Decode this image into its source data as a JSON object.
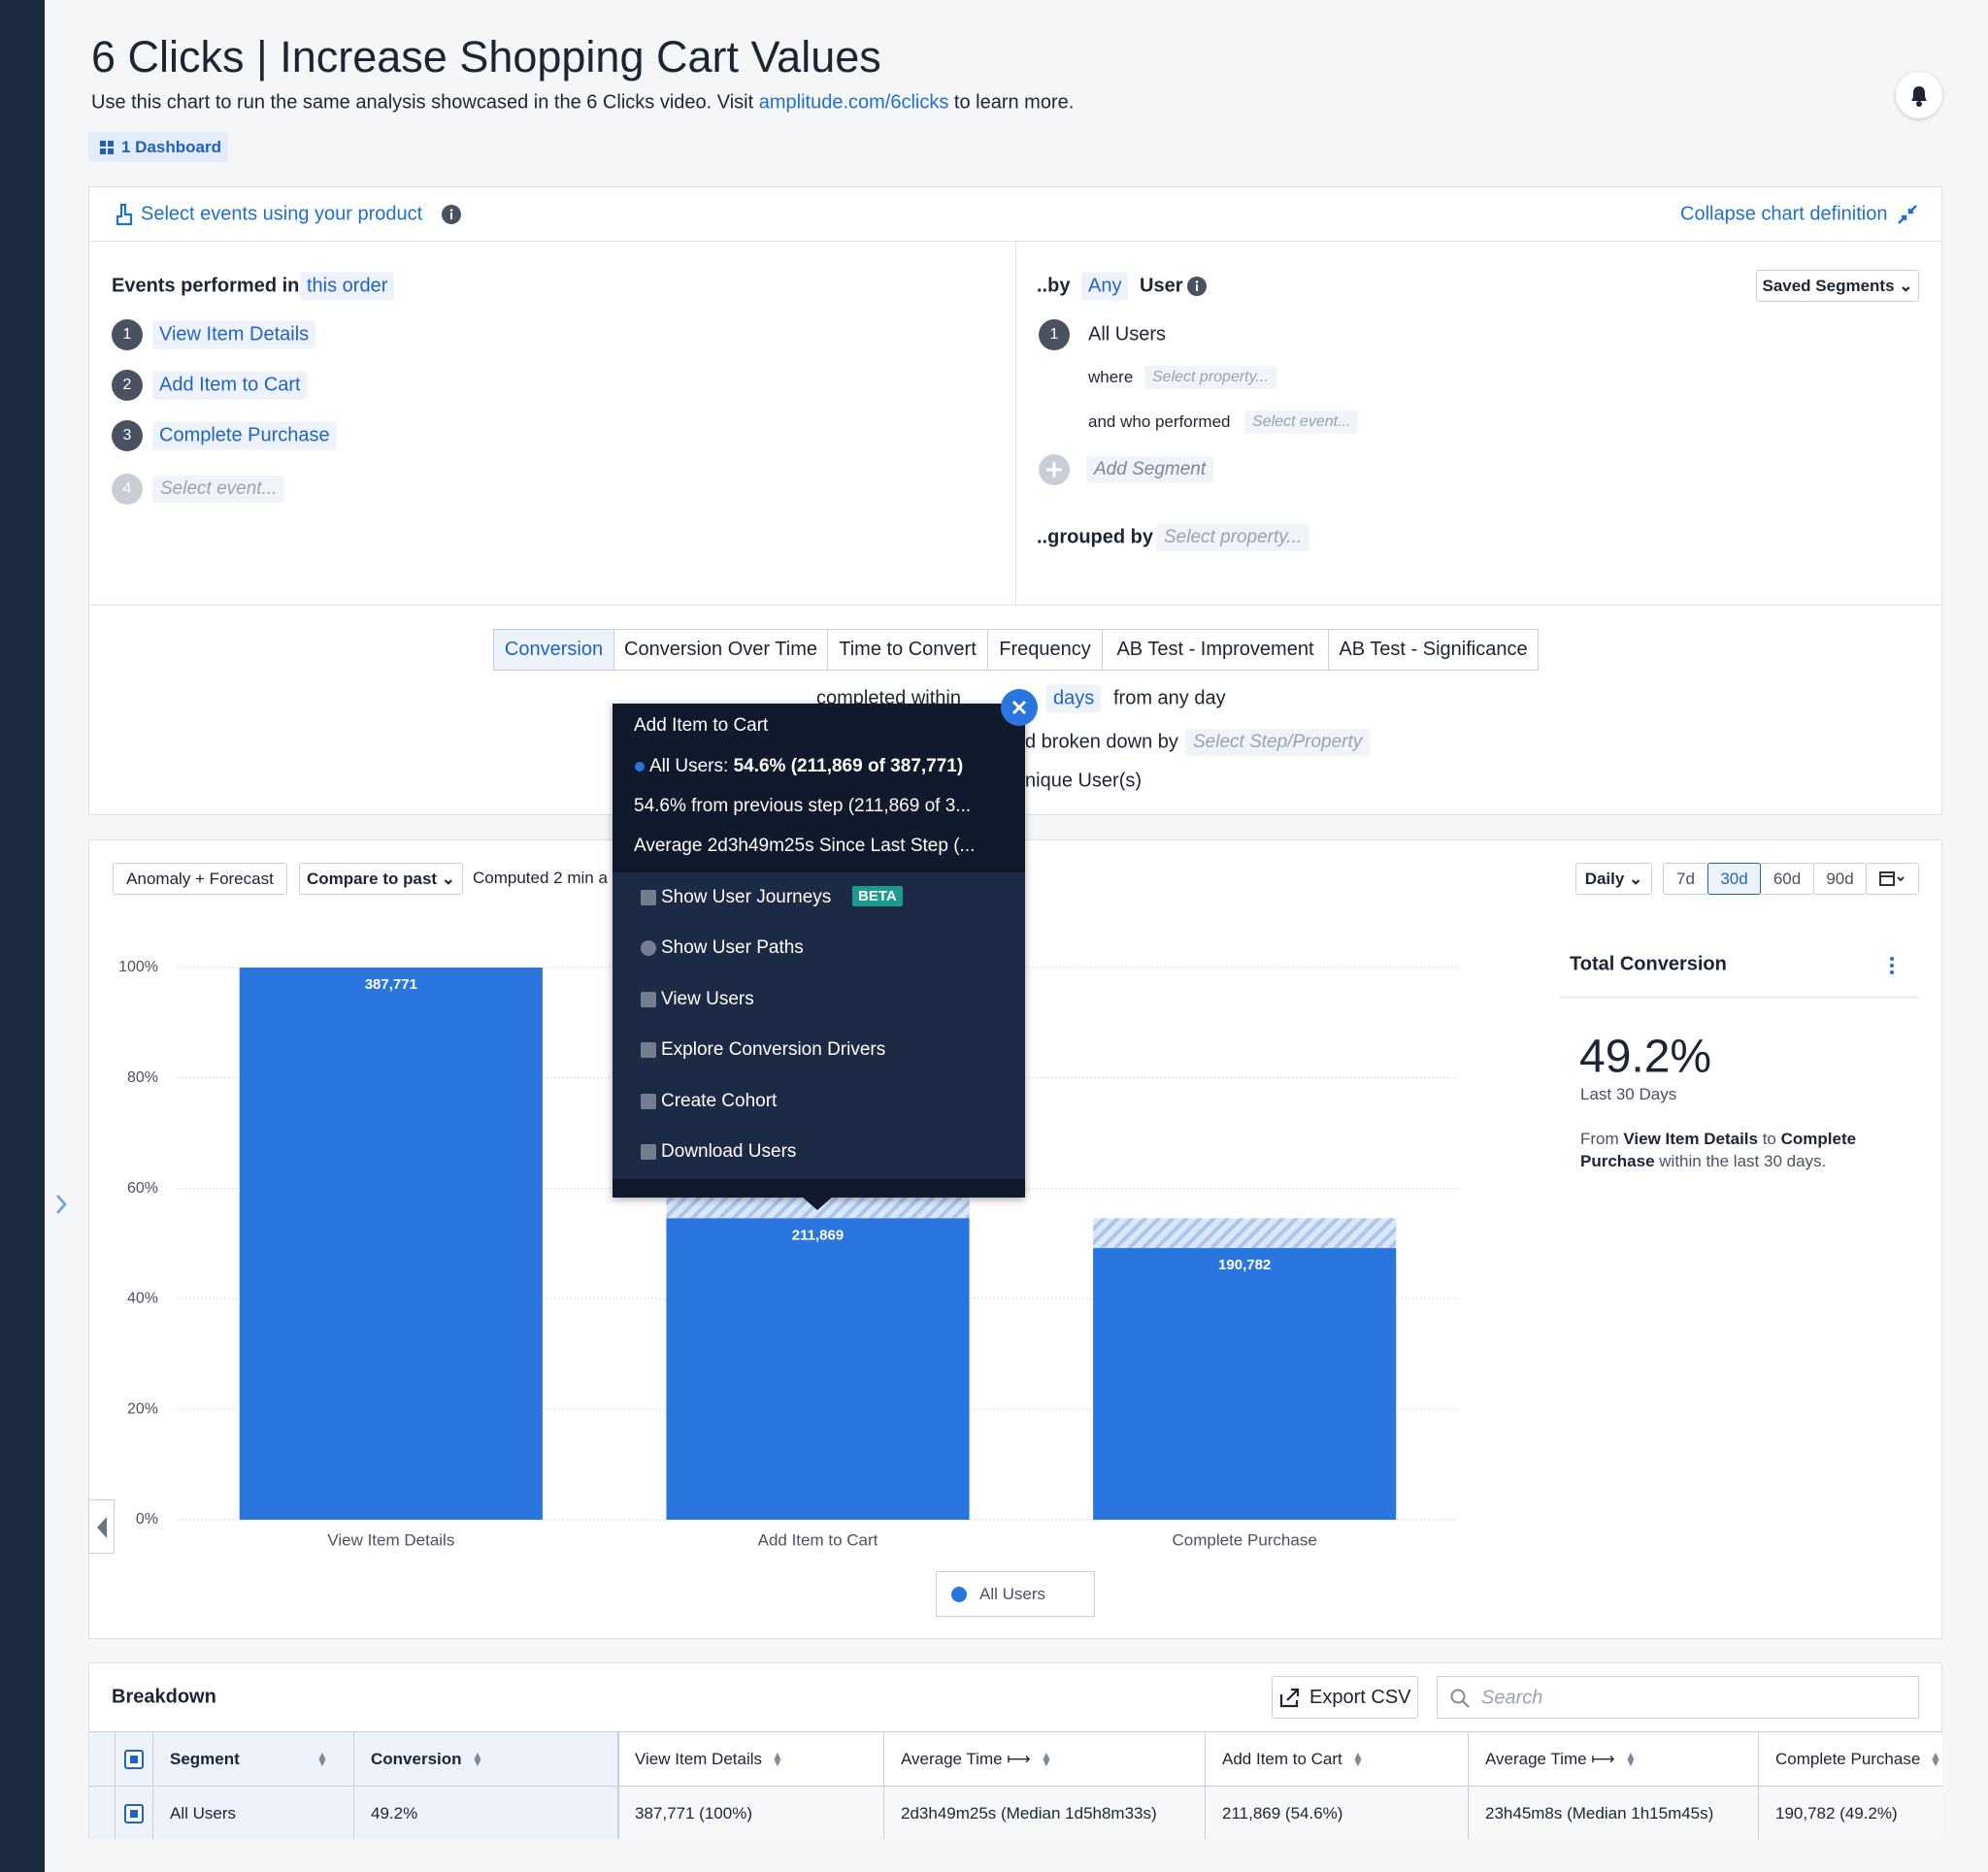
{
  "header": {
    "title": "6 Clicks | Increase Shopping Cart Values",
    "subtitle_before": "Use this chart to run the same analysis showcased in the 6 Clicks video. Visit ",
    "link": "amplitude.com/6clicks",
    "subtitle_after": " to learn more.",
    "dashboard": "1 Dashboard"
  },
  "definition": {
    "select_events": "Select events using your product",
    "collapse": "Collapse chart definition",
    "events_label": "Events performed in",
    "order": "this order",
    "steps": [
      {
        "number": "1",
        "label": "View Item Details"
      },
      {
        "number": "2",
        "label": "Add Item to Cart"
      },
      {
        "number": "3",
        "label": "Complete Purchase"
      },
      {
        "number": "4",
        "label": "Select event..."
      }
    ],
    "by": "..by",
    "any": "Any",
    "user": "User",
    "saved_segments": "Saved Segments",
    "segment_number": "1",
    "segment": "All Users",
    "where": "where",
    "where_property": "Select property...",
    "who_performed": "and who performed",
    "who_event": "Select event...",
    "add_segment": "Add Segment",
    "grouped_by": "..grouped by",
    "grouped_property": "Select property..."
  },
  "tabs": [
    "Conversion",
    "Conversion Over Time",
    "Time to Convert",
    "Frequency",
    "AB Test - Improvement",
    "AB Test - Significance"
  ],
  "settings": {
    "completed_within": "completed within",
    "days": "days",
    "from_any_day": "from any day",
    "broken_down_by": "d broken down by",
    "select_step": "Select Step/Property",
    "unique": "nique User(s)"
  },
  "toolbar": {
    "anomaly": "Anomaly + Forecast",
    "compare": "Compare to past",
    "computed": "Computed 2 min a",
    "interval": "Daily",
    "ranges": [
      "7d",
      "30d",
      "60d",
      "90d"
    ]
  },
  "chart_data": {
    "type": "bar",
    "categories": [
      "View Item Details",
      "Add Item to Cart",
      "Complete Purchase"
    ],
    "series": [
      {
        "name": "All Users",
        "color": "#2b76de",
        "values": [
          100,
          54.6,
          49.2
        ]
      }
    ],
    "bar_labels": [
      "387,771",
      "211,869",
      "190,782"
    ],
    "ylim": [
      0,
      100
    ],
    "yticks": [
      {
        "value": 0,
        "label": "0%"
      },
      {
        "value": 20,
        "label": "20%"
      },
      {
        "value": 40,
        "label": "40%"
      },
      {
        "value": 60,
        "label": "60%"
      },
      {
        "value": 80,
        "label": "80%"
      },
      {
        "value": 100,
        "label": "100%"
      }
    ],
    "grid": true
  },
  "tooltip": {
    "title": "Add Item to Cart",
    "series": "All Users:",
    "value": "54.6% (211,869 of 387,771)",
    "previous": "54.6% from previous step (211,869 of 3...",
    "average": "Average 2d3h49m25s Since Last Step (...",
    "actions": [
      "Show User Journeys",
      "Show User Paths",
      "View Users",
      "Explore Conversion Drivers",
      "Create Cohort",
      "Download Users"
    ],
    "beta": "BETA"
  },
  "summary": {
    "title": "Total Conversion",
    "value": "49.2%",
    "period": "Last 30 Days",
    "desc": [
      "From ",
      "View Item Details",
      " to ",
      "Complete Purchase",
      " within the last 30 days."
    ]
  },
  "breakdown": {
    "title": "Breakdown",
    "export": "Export CSV",
    "search": "Search",
    "columns": [
      "Segment",
      "Conversion",
      "View Item Details",
      "Average Time ⟼",
      "Add Item to Cart",
      "Average Time ⟼",
      "Complete Purchase"
    ],
    "rows": [
      [
        "All Users",
        "49.2%",
        "387,771 (100%)",
        "2d3h49m25s (Median 1d5h8m33s)",
        "211,869 (54.6%)",
        "23h45m8s (Median 1h15m45s)",
        "190,782 (49.2%)"
      ]
    ]
  }
}
